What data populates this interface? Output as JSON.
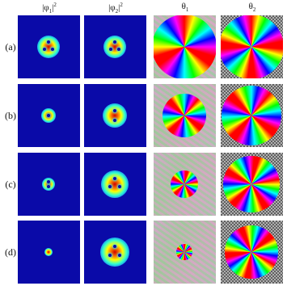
{
  "columns": [
    {
      "symbol": "|φ",
      "index": "1",
      "close": "|",
      "power": "2"
    },
    {
      "symbol": "|φ",
      "index": "2",
      "close": "|",
      "power": "2"
    },
    {
      "symbol": "θ",
      "index": "1"
    },
    {
      "symbol": "θ",
      "index": "2"
    }
  ],
  "rows": [
    "(a)",
    "(b)",
    "(c)",
    "(d)"
  ]
}
